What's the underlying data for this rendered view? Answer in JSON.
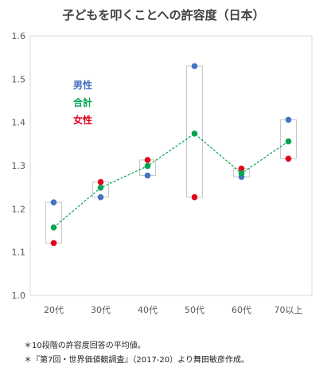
{
  "chart_data": {
    "type": "scatter",
    "title": "子どもを叩くことへの許容度（日本）",
    "xlabel": "",
    "ylabel": "",
    "categories": [
      "20代",
      "30代",
      "40代",
      "50代",
      "60代",
      "70以上"
    ],
    "ylim": [
      1.0,
      1.6
    ],
    "yticks": [
      "1.0",
      "1.1",
      "1.2",
      "1.3",
      "1.4",
      "1.5",
      "1.6"
    ],
    "grid": false,
    "legend_position": "top-left",
    "series": [
      {
        "name": "男性",
        "color": "#4472c4",
        "values": [
          1.215,
          1.227,
          1.277,
          1.53,
          1.274,
          1.406
        ]
      },
      {
        "name": "合計",
        "color": "#00a651",
        "values": [
          1.157,
          1.249,
          1.299,
          1.374,
          1.282,
          1.356
        ]
      },
      {
        "name": "女性",
        "color": "#e3001b",
        "values": [
          1.121,
          1.262,
          1.313,
          1.227,
          1.293,
          1.316
        ]
      }
    ]
  },
  "notes": [
    "＊10段階の許容度回答の平均値。",
    "＊『第7回・世界価値観調査』（2017-20）より舞田敏彦作成。"
  ]
}
